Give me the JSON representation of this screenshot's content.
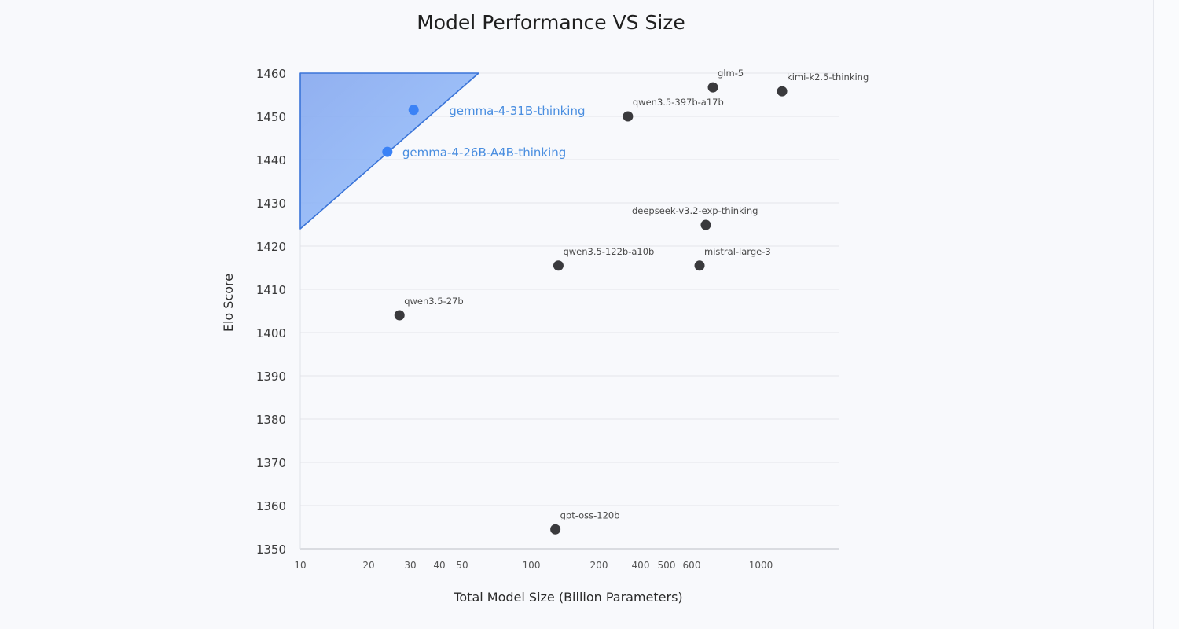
{
  "chart_data": {
    "type": "scatter",
    "title": "Model Performance VS Size",
    "xlabel": "Total Model Size (Billion Parameters)",
    "ylabel": "Elo Score",
    "x_scale": "log",
    "xlim": [
      10,
      1780
    ],
    "ylim": [
      1350,
      1460
    ],
    "x_ticks": [
      "10",
      "20",
      "30",
      "40",
      "50",
      "100",
      "200",
      "400",
      "500",
      "600",
      "1000"
    ],
    "y_ticks": [
      1460,
      1450,
      1440,
      1430,
      1420,
      1410,
      1400,
      1390,
      1380,
      1370,
      1360,
      1350
    ],
    "grid": "horizontal",
    "colors": {
      "highlight": "#3b82f6",
      "default": "#3a3a3d",
      "highlight_label": "#4a8ee0",
      "region": "#8fb4f5"
    },
    "highlight_region": [
      [
        10,
        1460
      ],
      [
        59,
        1460
      ],
      [
        10,
        1424
      ]
    ],
    "points": [
      {
        "label": "gemma-4-31B-thinking",
        "x": 31,
        "y": 1451.5,
        "highlight": true
      },
      {
        "label": "gemma-4-26B-A4B-thinking",
        "x": 24,
        "y": 1441.8,
        "highlight": true
      },
      {
        "label": "glm-5",
        "x": 702,
        "y": 1456.7,
        "highlight": false
      },
      {
        "label": "kimi-k2.5-thinking",
        "x": 1170,
        "y": 1455.8,
        "highlight": false
      },
      {
        "label": "qwen3.5-397b-a17b",
        "x": 324,
        "y": 1450,
        "highlight": false
      },
      {
        "label": "deepseek-v3.2-exp-thinking",
        "x": 666,
        "y": 1424.9,
        "highlight": false
      },
      {
        "label": "qwen3.5-122b-a10b",
        "x": 132,
        "y": 1415.5,
        "highlight": false
      },
      {
        "label": "mistral-large-3",
        "x": 636,
        "y": 1415.5,
        "highlight": false
      },
      {
        "label": "qwen3.5-27b",
        "x": 27,
        "y": 1404,
        "highlight": false
      },
      {
        "label": "gpt-oss-120b",
        "x": 128,
        "y": 1354.5,
        "highlight": false
      }
    ]
  }
}
